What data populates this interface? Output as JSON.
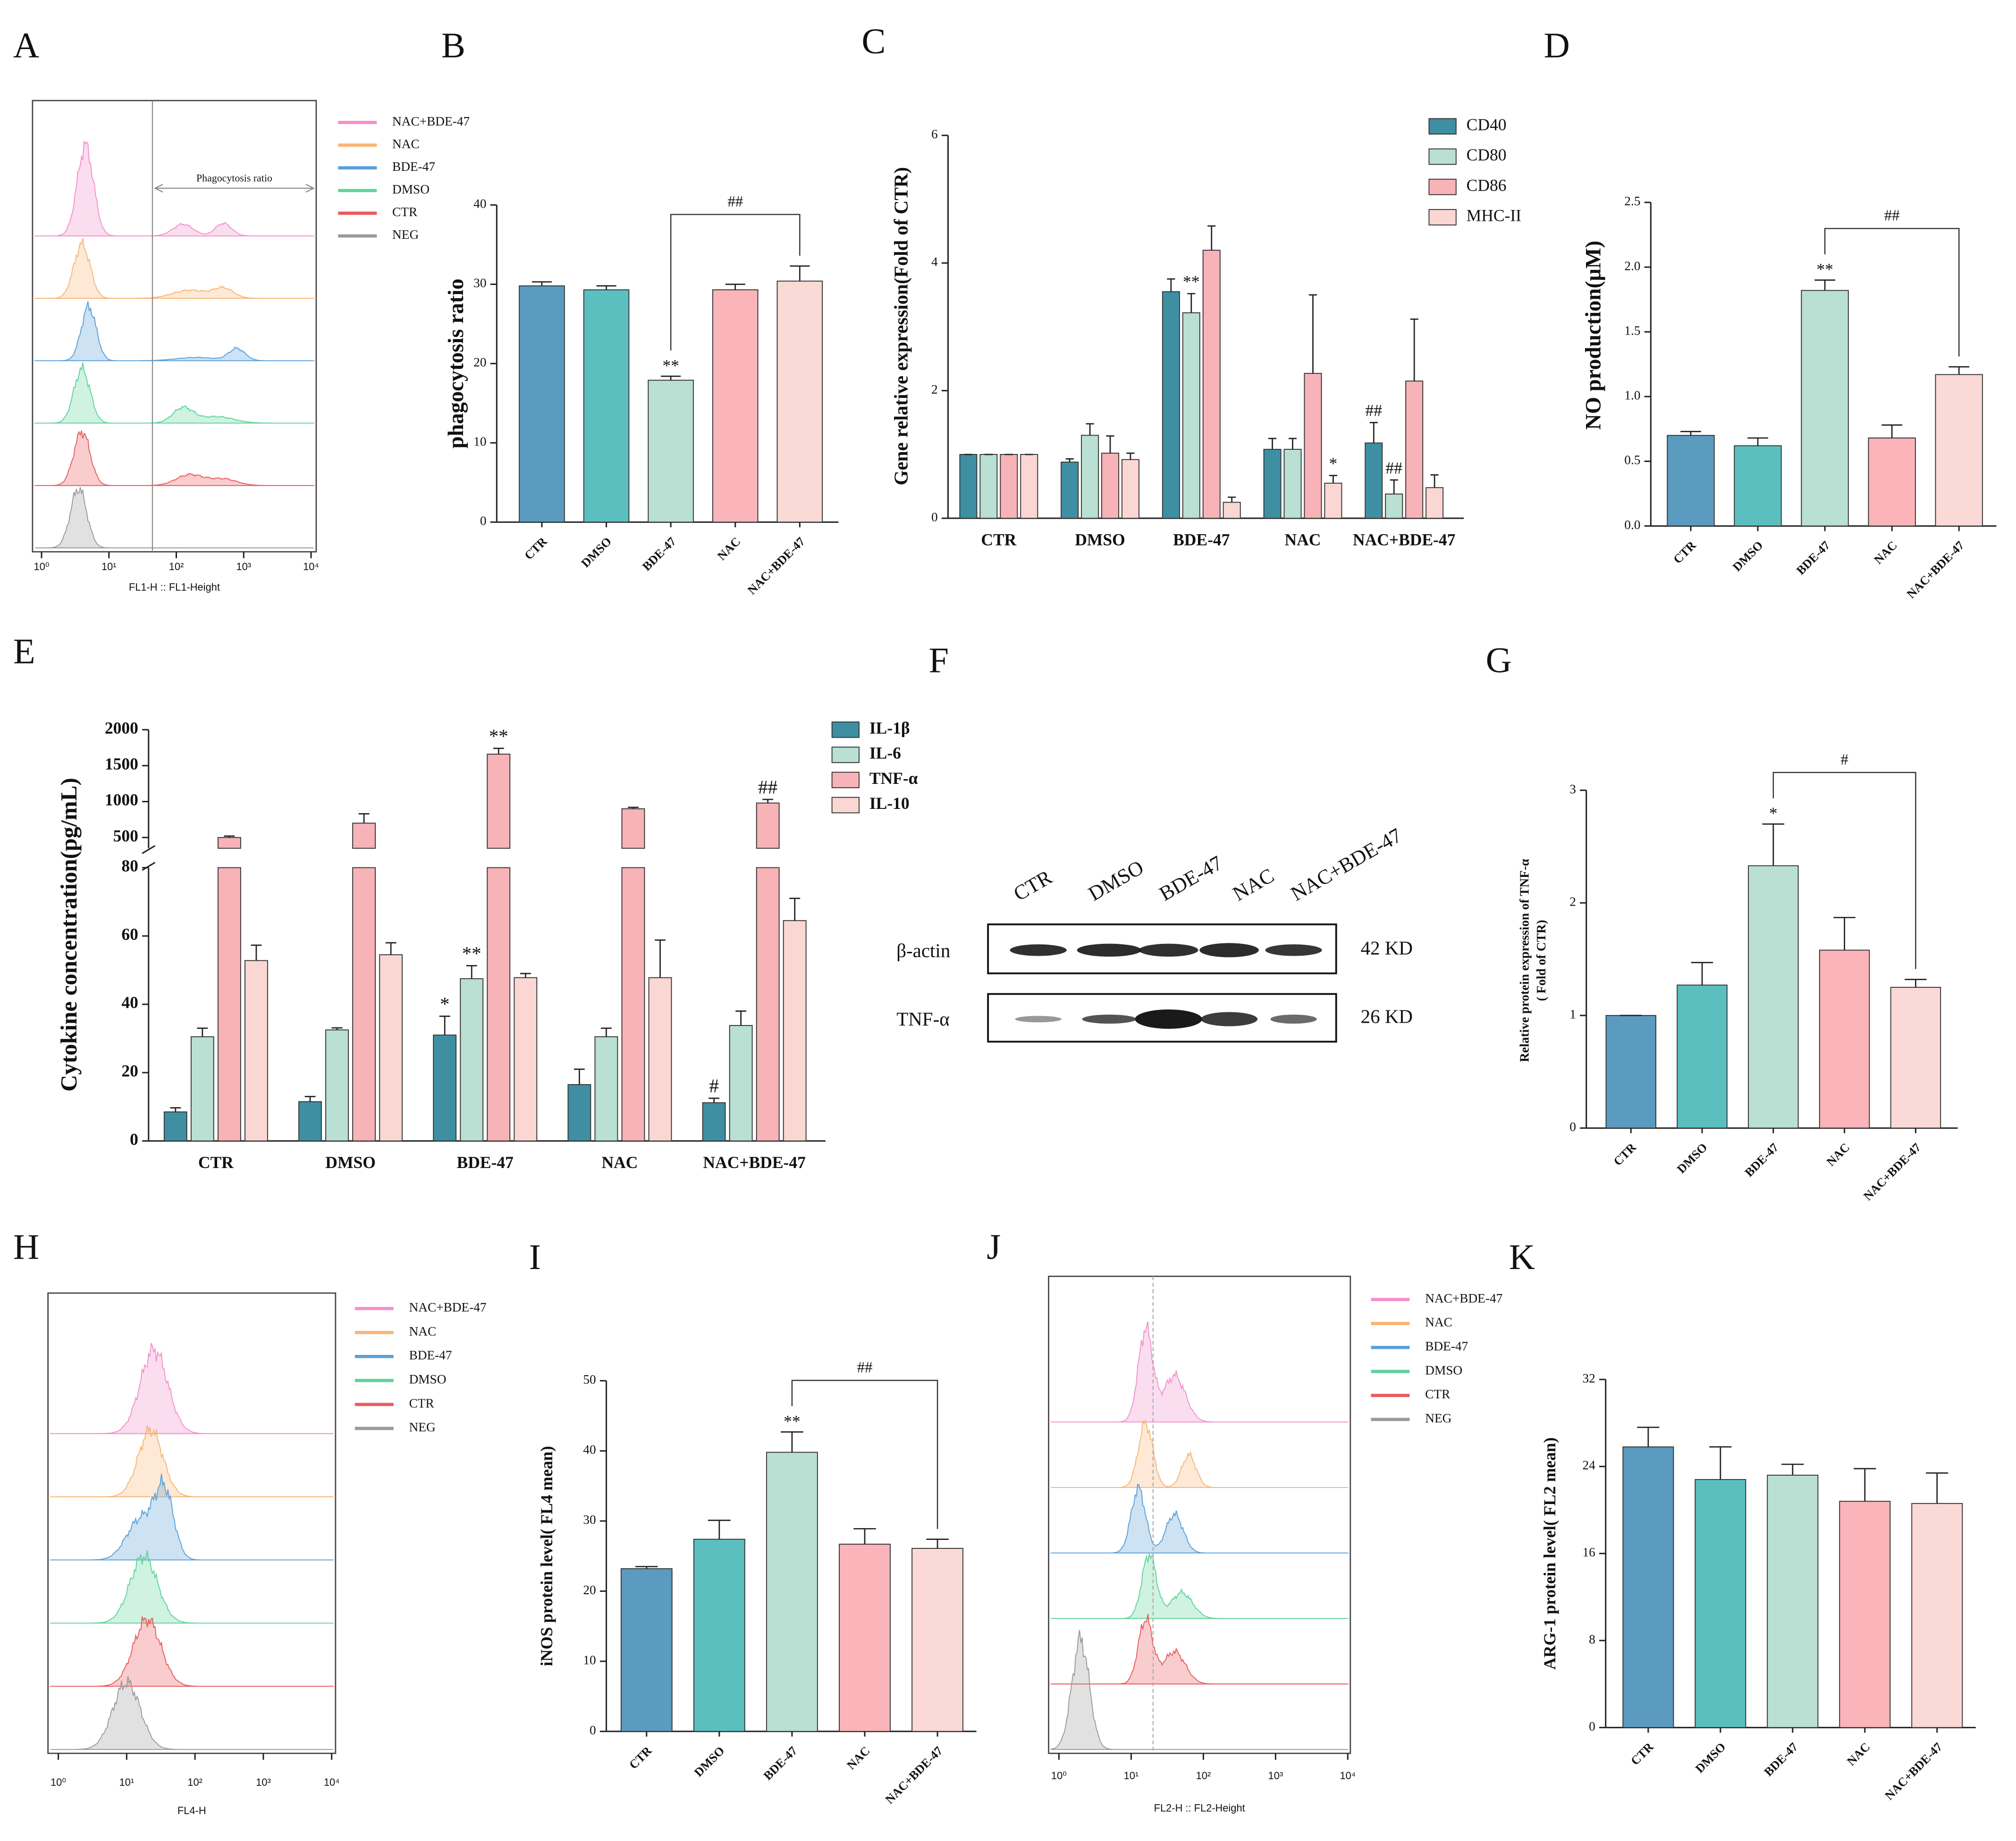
{
  "chart_data": [
    {
      "type": "flow",
      "panel": "A",
      "series": [
        {
          "name": "NAC+BDE-47",
          "color": "#f390cc"
        },
        {
          "name": "NAC",
          "color": "#f8b574"
        },
        {
          "name": "BDE-47",
          "color": "#5a9fd8"
        },
        {
          "name": "DMSO",
          "color": "#5fd39b"
        },
        {
          "name": "CTR",
          "color": "#ea5a5e"
        },
        {
          "name": "NEG",
          "color": "#9a9a9a"
        }
      ],
      "xlim": [
        1,
        10000
      ],
      "xticks": [
        {
          "value": 1,
          "label": "10⁰"
        },
        {
          "value": 10,
          "label": "10¹"
        },
        {
          "value": 100,
          "label": "10²"
        },
        {
          "value": 1000,
          "label": "10³"
        },
        {
          "value": 10000,
          "label": "10⁴"
        }
      ],
      "xlabel": "FL1-H :: FL1-Height",
      "annotation": "Phagocytosis ratio"
    },
    {
      "type": "bar",
      "panel": "B",
      "ylabel": "phagocytosis ratio",
      "categories": [
        "CTR",
        "DMSO",
        "BDE-47",
        "NAC",
        "NAC+BDE-47"
      ],
      "values": [
        29.8,
        29.3,
        17.9,
        29.3,
        30.4
      ],
      "errors": [
        0.5,
        0.5,
        0.5,
        0.7,
        1.9
      ],
      "colors": [
        "#5b9bbf",
        "#5cbfbf",
        "#b9e0d2",
        "#fbb4b9",
        "#fbd9d6"
      ],
      "annotations": [
        null,
        null,
        "**",
        null,
        null
      ],
      "bracket": {
        "label": "##",
        "from": "BDE-47",
        "to": "NAC+BDE-47"
      },
      "ylim": [
        0,
        40
      ],
      "yticks": [
        0,
        10,
        20,
        30,
        40
      ]
    },
    {
      "type": "grouped_bar",
      "panel": "C",
      "ylabel": "Gene relative  expression(Fold of CTR)",
      "categories": [
        "CTR",
        "DMSO",
        "BDE-47",
        "NAC",
        "NAC+BDE-47"
      ],
      "series": [
        {
          "name": "CD40",
          "color": "#3f8fa3",
          "values": [
            1,
            0.88,
            3.55,
            1.08,
            1.18
          ],
          "errors": [
            0,
            0.05,
            0.2,
            0.17,
            0.32
          ],
          "annotations": [
            null,
            null,
            null,
            null,
            "##"
          ]
        },
        {
          "name": "CD80",
          "color": "#b9e0d2",
          "values": [
            1,
            1.3,
            3.22,
            1.08,
            0.38
          ],
          "errors": [
            0,
            0.18,
            0.3,
            0.17,
            0.22
          ],
          "annotations": [
            null,
            null,
            "**",
            null,
            "##"
          ]
        },
        {
          "name": "CD86",
          "color": "#f7b3b8",
          "values": [
            1,
            1.02,
            4.2,
            2.27,
            2.15
          ],
          "errors": [
            0,
            0.27,
            0.38,
            1.23,
            0.97
          ],
          "annotations": [
            null,
            null,
            null,
            null,
            null
          ]
        },
        {
          "name": "MHC-II",
          "color": "#fad7d3",
          "values": [
            1,
            0.92,
            0.25,
            0.55,
            0.48
          ],
          "errors": [
            0,
            0.1,
            0.08,
            0.12,
            0.2
          ],
          "annotations": [
            null,
            null,
            null,
            "*",
            null
          ]
        }
      ],
      "ylim": [
        0,
        6
      ],
      "yticks": [
        0,
        2,
        4,
        6
      ]
    },
    {
      "type": "bar",
      "panel": "D",
      "ylabel": "NO production(μM)",
      "categories": [
        "CTR",
        "DMSO",
        "BDE-47",
        "NAC",
        "NAC+BDE-47"
      ],
      "values": [
        0.7,
        0.62,
        1.82,
        0.68,
        1.17
      ],
      "errors": [
        0.03,
        0.06,
        0.08,
        0.1,
        0.06
      ],
      "colors": [
        "#5b9bbf",
        "#5cbfbf",
        "#b9e0d2",
        "#fbb4b9",
        "#fbd9d6"
      ],
      "annotations": [
        null,
        null,
        "**",
        null,
        null
      ],
      "bracket": {
        "label": "##",
        "from": "BDE-47",
        "to": "NAC+BDE-47"
      },
      "ylim": [
        0,
        2.5
      ],
      "yticks": [
        {
          "value": 0,
          "label": "0.0"
        },
        {
          "value": 0.5,
          "label": "0.5"
        },
        {
          "value": 1,
          "label": "1.0"
        },
        {
          "value": 1.5,
          "label": "1.5"
        },
        {
          "value": 2,
          "label": "2.0"
        },
        {
          "value": 2.5,
          "label": "2.5"
        }
      ]
    },
    {
      "type": "broken_bar",
      "panel": "E",
      "ylabel": "Cytokine concentration(pg/mL)",
      "categories": [
        "CTR",
        "DMSO",
        "BDE-47",
        "NAC",
        "NAC+BDE-47"
      ],
      "series": [
        {
          "name": "IL-1β",
          "color": "#3f8fa3",
          "values": [
            8.5,
            11.5,
            31,
            16.5,
            11.2
          ],
          "errors": [
            1.2,
            1.5,
            5.5,
            4.5,
            1.3
          ],
          "annotations": [
            null,
            null,
            "*",
            null,
            "#"
          ]
        },
        {
          "name": "IL-6",
          "color": "#b9e0d2",
          "values": [
            30.5,
            32.5,
            47.5,
            30.5,
            33.8
          ],
          "errors": [
            2.5,
            0.6,
            3.8,
            2.5,
            4.2
          ],
          "annotations": [
            null,
            null,
            "**",
            null,
            null
          ]
        },
        {
          "name": "TNF-α",
          "color": "#f7b3b8",
          "values": [
            500,
            700,
            1660,
            900,
            980
          ],
          "errors": [
            20,
            130,
            80,
            20,
            50
          ],
          "annotations": [
            null,
            null,
            "**",
            null,
            "##"
          ]
        },
        {
          "name": "IL-10",
          "color": "#fad7d3",
          "values": [
            52.8,
            54.5,
            47.8,
            47.8,
            64.5
          ],
          "errors": [
            4.5,
            3.5,
            1.2,
            11,
            6.5
          ],
          "annotations": [
            null,
            null,
            null,
            null,
            null
          ]
        }
      ],
      "ylim": [
        0,
        80
      ],
      "yticks": [
        0,
        20,
        40,
        60,
        80
      ],
      "ylim_upper": [
        350,
        2000
      ],
      "yticks_upper": [
        500,
        1000,
        1500,
        2000
      ]
    },
    {
      "type": "blot",
      "panel": "F",
      "lanes": [
        "CTR",
        "DMSO",
        "BDE-47",
        "NAC",
        "NAC+BDE-47"
      ],
      "rows": [
        {
          "name": "β-actin",
          "size": "42 KD"
        },
        {
          "name": "TNF-α",
          "size": "26 KD"
        }
      ]
    },
    {
      "type": "bar",
      "panel": "G",
      "ylabel": [
        "Relative protein expression of  TNF-α",
        "( Fold of CTR)"
      ],
      "categories": [
        "CTR",
        "DMSO",
        "BDE-47",
        "NAC",
        "NAC+BDE-47"
      ],
      "values": [
        1,
        1.27,
        2.33,
        1.58,
        1.25
      ],
      "errors": [
        0,
        0.2,
        0.37,
        0.29,
        0.07
      ],
      "colors": [
        "#5b9bbf",
        "#5cbfbf",
        "#b9e0d2",
        "#fbb4b9",
        "#fbd9d6"
      ],
      "annotations": [
        null,
        null,
        "*",
        null,
        null
      ],
      "bracket": {
        "label": "#",
        "from": "BDE-47",
        "to": "NAC+BDE-47"
      },
      "ylim": [
        0,
        3
      ],
      "yticks": [
        0,
        1,
        2,
        3
      ]
    },
    {
      "type": "flow",
      "panel": "H",
      "series": [
        {
          "name": "NAC+BDE-47",
          "color": "#f390cc"
        },
        {
          "name": "NAC",
          "color": "#f8b574"
        },
        {
          "name": "BDE-47",
          "color": "#5a9fd8"
        },
        {
          "name": "DMSO",
          "color": "#5fd39b"
        },
        {
          "name": "CTR",
          "color": "#ea5a5e"
        },
        {
          "name": "NEG",
          "color": "#9a9a9a"
        }
      ],
      "xlim": [
        1,
        10000
      ],
      "xticks": [
        {
          "value": 1,
          "label": "10⁰"
        },
        {
          "value": 10,
          "label": "10¹"
        },
        {
          "value": 100,
          "label": "10²"
        },
        {
          "value": 1000,
          "label": "10³"
        },
        {
          "value": 10000,
          "label": "10⁴"
        }
      ],
      "xlabel": "FL4-H"
    },
    {
      "type": "bar",
      "panel": "I",
      "ylabel": "iNOS protein level( FL4 mean)",
      "categories": [
        "CTR",
        "DMSO",
        "BDE-47",
        "NAC",
        "NAC+BDE-47"
      ],
      "values": [
        23.2,
        27.4,
        39.8,
        26.7,
        26.1
      ],
      "errors": [
        0.3,
        2.7,
        2.9,
        2.2,
        1.3
      ],
      "colors": [
        "#5b9bbf",
        "#5cbfbf",
        "#b9e0d2",
        "#fbb4b9",
        "#fbd9d6"
      ],
      "annotations": [
        null,
        null,
        "**",
        null,
        null
      ],
      "bracket": {
        "label": "##",
        "from": "BDE-47",
        "to": "NAC+BDE-47"
      },
      "ylim": [
        0,
        50
      ],
      "yticks": [
        0,
        10,
        20,
        30,
        40,
        50
      ]
    },
    {
      "type": "flow",
      "panel": "J",
      "series": [
        {
          "name": "NAC+BDE-47",
          "color": "#f390cc"
        },
        {
          "name": "NAC",
          "color": "#f8b574"
        },
        {
          "name": "BDE-47",
          "color": "#5a9fd8"
        },
        {
          "name": "DMSO",
          "color": "#5fd39b"
        },
        {
          "name": "CTR",
          "color": "#ea5a5e"
        },
        {
          "name": "NEG",
          "color": "#9a9a9a"
        }
      ],
      "xlim": [
        1,
        10000
      ],
      "xticks": [
        {
          "value": 1,
          "label": "10⁰"
        },
        {
          "value": 10,
          "label": "10¹"
        },
        {
          "value": 100,
          "label": "10²"
        },
        {
          "value": 1000,
          "label": "10³"
        },
        {
          "value": 10000,
          "label": "10⁴"
        }
      ],
      "xlabel": "FL2-H :: FL2-Height"
    },
    {
      "type": "bar",
      "panel": "K",
      "ylabel": "ARG-1 protein level( FL2 mean)",
      "categories": [
        "CTR",
        "DMSO",
        "BDE-47",
        "NAC",
        "NAC+BDE-47"
      ],
      "values": [
        25.8,
        22.8,
        23.2,
        20.8,
        20.6
      ],
      "errors": [
        1.8,
        3,
        1,
        3,
        2.8
      ],
      "colors": [
        "#5b9bbf",
        "#5cbfbf",
        "#b9e0d2",
        "#fbb4b9",
        "#fbd9d6"
      ],
      "ylim": [
        0,
        32
      ],
      "yticks": [
        0,
        8,
        16,
        24,
        32
      ]
    }
  ]
}
